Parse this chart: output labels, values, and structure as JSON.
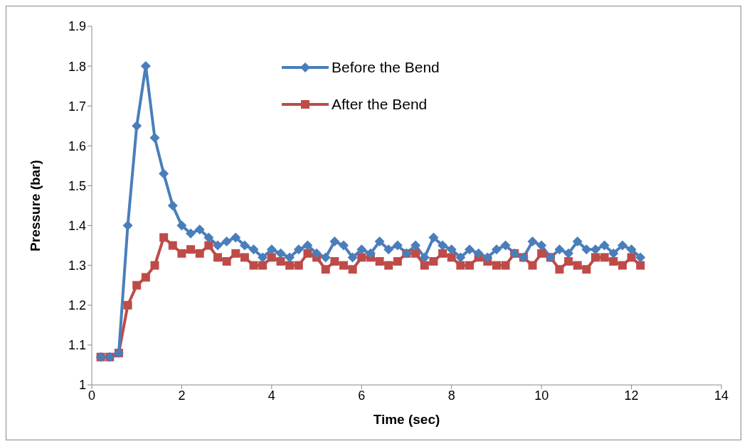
{
  "chart_data": {
    "type": "line",
    "xlabel": "Time (sec)",
    "ylabel": "Pressure (bar)",
    "x": [
      0.2,
      0.4,
      0.6,
      0.8,
      1.0,
      1.2,
      1.4,
      1.6,
      1.8,
      2.0,
      2.2,
      2.4,
      2.6,
      2.8,
      3.0,
      3.2,
      3.4,
      3.6,
      3.8,
      4.0,
      4.2,
      4.4,
      4.6,
      4.8,
      5.0,
      5.2,
      5.4,
      5.6,
      5.8,
      6.0,
      6.2,
      6.4,
      6.6,
      6.8,
      7.0,
      7.2,
      7.4,
      7.6,
      7.8,
      8.0,
      8.2,
      8.4,
      8.6,
      8.8,
      9.0,
      9.2,
      9.4,
      9.6,
      9.8,
      10.0,
      10.2,
      10.4,
      10.6,
      10.8,
      11.0,
      11.2,
      11.4,
      11.6,
      11.8,
      12.0,
      12.2
    ],
    "series": [
      {
        "name": "Before the Bend",
        "color": "#4a7ebb",
        "marker": "diamond",
        "values": [
          1.07,
          1.07,
          1.08,
          1.4,
          1.65,
          1.8,
          1.62,
          1.53,
          1.45,
          1.4,
          1.38,
          1.39,
          1.37,
          1.35,
          1.36,
          1.37,
          1.35,
          1.34,
          1.32,
          1.34,
          1.33,
          1.32,
          1.34,
          1.35,
          1.33,
          1.32,
          1.36,
          1.35,
          1.32,
          1.34,
          1.33,
          1.36,
          1.34,
          1.35,
          1.33,
          1.35,
          1.32,
          1.37,
          1.35,
          1.34,
          1.32,
          1.34,
          1.33,
          1.32,
          1.34,
          1.35,
          1.33,
          1.32,
          1.36,
          1.35,
          1.32,
          1.34,
          1.33,
          1.36,
          1.34,
          1.34,
          1.35,
          1.33,
          1.35,
          1.34,
          1.32
        ]
      },
      {
        "name": "After the Bend",
        "color": "#be4b48",
        "marker": "square",
        "values": [
          1.07,
          1.07,
          1.08,
          1.2,
          1.25,
          1.27,
          1.3,
          1.37,
          1.35,
          1.33,
          1.34,
          1.33,
          1.35,
          1.32,
          1.31,
          1.33,
          1.32,
          1.3,
          1.3,
          1.32,
          1.31,
          1.3,
          1.3,
          1.33,
          1.32,
          1.29,
          1.31,
          1.3,
          1.29,
          1.32,
          1.32,
          1.31,
          1.3,
          1.31,
          1.33,
          1.33,
          1.3,
          1.31,
          1.33,
          1.32,
          1.3,
          1.3,
          1.32,
          1.31,
          1.3,
          1.3,
          1.33,
          1.32,
          1.3,
          1.33,
          1.32,
          1.29,
          1.31,
          1.3,
          1.29,
          1.32,
          1.32,
          1.31,
          1.3,
          1.32,
          1.3
        ]
      }
    ],
    "xlim": [
      0,
      14
    ],
    "xticks": [
      0,
      2,
      4,
      6,
      8,
      10,
      12,
      14
    ],
    "ylim": [
      1,
      1.9
    ],
    "yticks": [
      1,
      1.1,
      1.2,
      1.3,
      1.4,
      1.5,
      1.6,
      1.7,
      1.8,
      1.9
    ],
    "grid": false,
    "legend": "top"
  }
}
